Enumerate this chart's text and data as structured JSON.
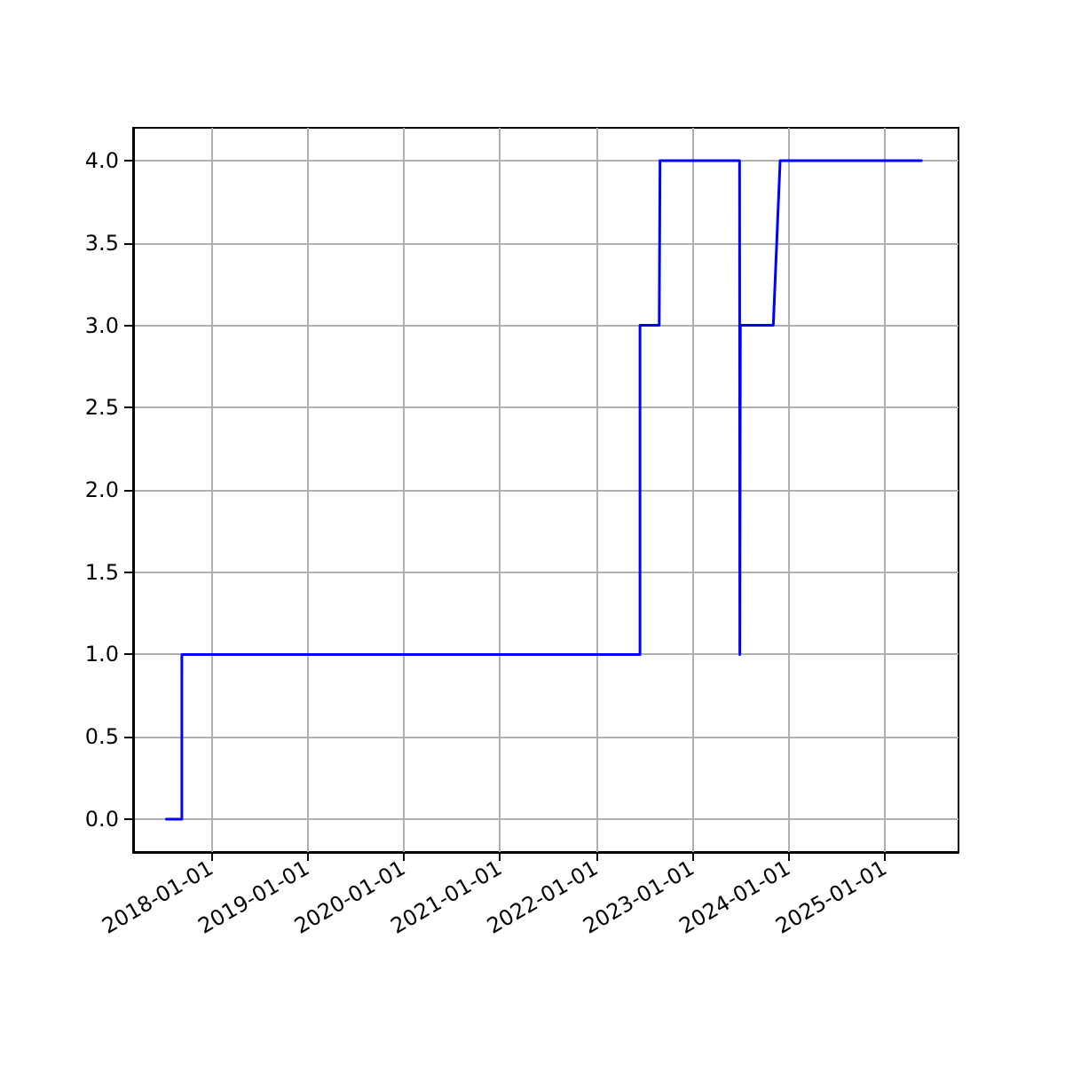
{
  "chart_data": {
    "type": "line",
    "x": [
      "2017-07-15",
      "2017-09-12",
      "2017-09-12",
      "2022-06-17",
      "2022-06-17",
      "2022-08-29",
      "2022-09-01",
      "2023-06-30",
      "2023-07-01",
      "2023-07-03",
      "2023-11-05",
      "2023-12-01",
      "2025-05-20"
    ],
    "series": [
      {
        "color": "#0000ff",
        "values": [
          0,
          0,
          1,
          1,
          3,
          3,
          4,
          4,
          1,
          3,
          3,
          4,
          4
        ]
      }
    ],
    "xlim": [
      "2017-03-11",
      "2025-10-08"
    ],
    "xticks": [
      "2018-01-01",
      "2019-01-01",
      "2020-01-01",
      "2021-01-01",
      "2022-01-01",
      "2023-01-01",
      "2024-01-01",
      "2025-01-01"
    ],
    "ylim": [
      -0.2,
      4.2
    ],
    "yticks": [
      {
        "value": 0,
        "label": "0.0"
      },
      {
        "value": 0.5,
        "label": "0.5"
      },
      {
        "value": 1,
        "label": "1.0"
      },
      {
        "value": 1.5,
        "label": "1.5"
      },
      {
        "value": 2,
        "label": "2.0"
      },
      {
        "value": 2.5,
        "label": "2.5"
      },
      {
        "value": 3,
        "label": "3.0"
      },
      {
        "value": 3.5,
        "label": "3.5"
      },
      {
        "value": 4,
        "label": "4.0"
      }
    ],
    "grid": true,
    "marker": "none",
    "line_style": "solid"
  }
}
